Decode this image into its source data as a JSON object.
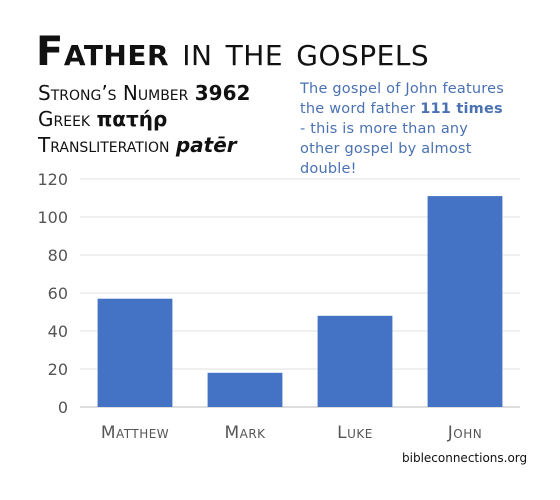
{
  "header": {
    "title_strong": "Father",
    "title_rest": " in the gospels",
    "strongs_label": "Strong’s Number",
    "strongs_value": "3962",
    "greek_label": "Greek",
    "greek_value": "πατήρ",
    "translit_label": "Transliteration",
    "translit_value": "patēr"
  },
  "note": {
    "text_before": "The gospel of John features the word father ",
    "highlight": "111 times",
    "text_after": " - this is more than any other gospel by almost double!"
  },
  "chart_data": {
    "type": "bar",
    "categories": [
      "Matthew",
      "Mark",
      "Luke",
      "John"
    ],
    "values": [
      57,
      18,
      48,
      111
    ],
    "ylim": [
      0,
      120
    ],
    "yticks": [
      0,
      20,
      40,
      60,
      80,
      100,
      120
    ],
    "grid": true,
    "bar_color": "#4472c4"
  },
  "source": "bibleconnections.org"
}
